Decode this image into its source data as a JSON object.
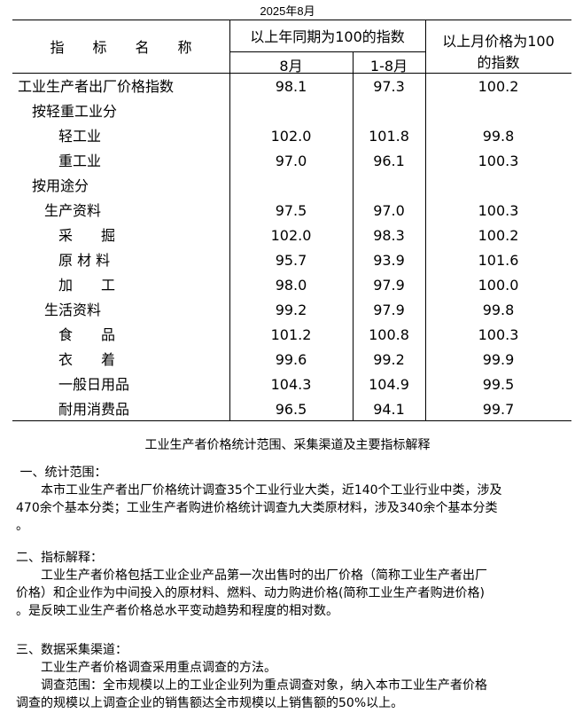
{
  "date": "2025年8月",
  "header": {
    "name": "指　　标　　名　　称",
    "yoy_group": "以上年同期为100的指数",
    "month": "8月",
    "ytd": "1-8月",
    "mom": "以上月价格为100的指数",
    "mom_line1": "以上月价格为100",
    "mom_line2": "的指数"
  },
  "rows": [
    {
      "name": "工业生产者出厂价格指数",
      "level": 0,
      "month": "98.1",
      "ytd": "97.3",
      "mom": "100.2"
    },
    {
      "name": "按轻重工业分",
      "level": 1,
      "month": "",
      "ytd": "",
      "mom": ""
    },
    {
      "name": "轻工业",
      "level": 3,
      "month": "102.0",
      "ytd": "101.8",
      "mom": "99.8"
    },
    {
      "name": "重工业",
      "level": 3,
      "month": "97.0",
      "ytd": "96.1",
      "mom": "100.3"
    },
    {
      "name": "按用途分",
      "level": 1,
      "month": "",
      "ytd": "",
      "mom": ""
    },
    {
      "name": "生产资料",
      "level": 2,
      "month": "97.5",
      "ytd": "97.0",
      "mom": "100.3"
    },
    {
      "name": "采　　掘",
      "level": 3,
      "month": "102.0",
      "ytd": "98.3",
      "mom": "100.2"
    },
    {
      "name": "原 材 料",
      "level": 3,
      "month": "95.7",
      "ytd": "93.9",
      "mom": "101.6"
    },
    {
      "name": "加　　工",
      "level": 3,
      "month": "98.0",
      "ytd": "97.9",
      "mom": "100.0"
    },
    {
      "name": "生活资料",
      "level": 2,
      "month": "99.2",
      "ytd": "97.9",
      "mom": "99.8"
    },
    {
      "name": "食　　品",
      "level": 3,
      "month": "101.2",
      "ytd": "100.8",
      "mom": "100.3"
    },
    {
      "name": "衣　　着",
      "level": 3,
      "month": "99.6",
      "ytd": "99.2",
      "mom": "99.9"
    },
    {
      "name": "一般日用品",
      "level": 3,
      "month": "104.3",
      "ytd": "104.9",
      "mom": "99.5"
    },
    {
      "name": "耐用消费品",
      "level": 3,
      "month": "96.5",
      "ytd": "94.1",
      "mom": "99.7"
    }
  ],
  "notes": {
    "title": "工业生产者价格统计范围、采集渠道及主要指标解释",
    "s1_head": " 一、统计范围：",
    "s1_body": "　　本市工业生产者出厂价格统计调查35个工业行业大类，近140个工业行业中类，涉及\n470余个基本分类；工业生产者购进价格统计调查九大类原材料，涉及340余个基本分类\n。",
    "s2_head": "二、指标解释：",
    "s2_body": "　　工业生产者价格包括工业企业产品第一次出售时的出厂价格（简称工业生产者出厂\n价格）和企业作为中间投入的原材料、燃料、动力购进价格(简称工业生产者购进价格)\n。是反映工业生产者价格总水平变动趋势和程度的相对数。",
    "s3_head": "三、数据采集渠道：",
    "s3_body": "　　工业生产者价格调查采用重点调查的方法。\n　　调查范围：全市规模以上的工业企业列为重点调查对象，纳入本市工业生产者价格\n调查的规模以上调查企业的销售额达全市规模以上销售额的50%以上。"
  }
}
